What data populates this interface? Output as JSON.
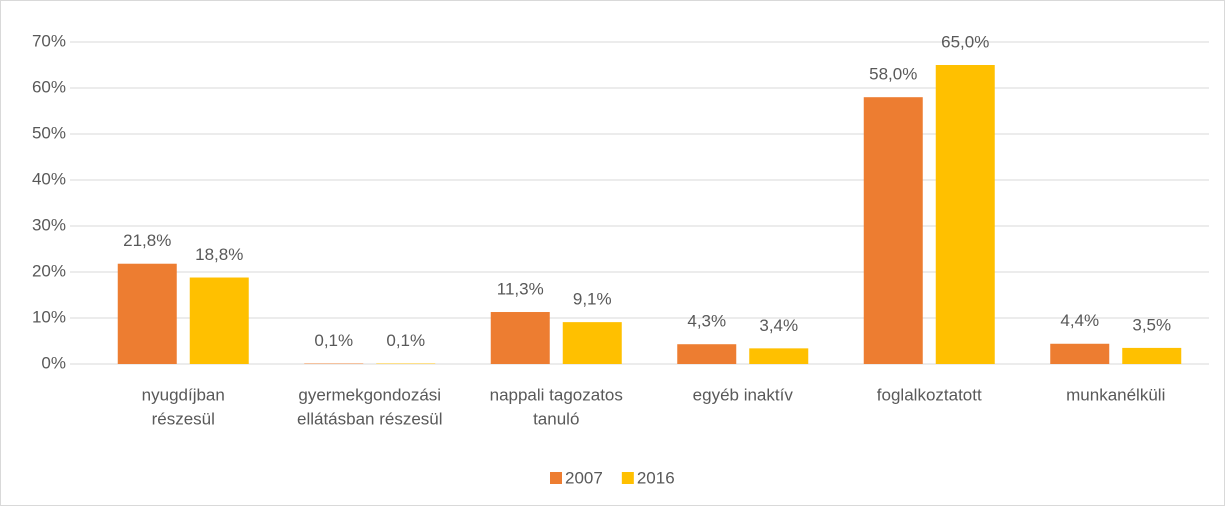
{
  "chart_data": {
    "type": "bar",
    "categories": [
      [
        "nyugdíjban",
        "részesül"
      ],
      [
        "gyermekgondozási",
        "ellátásban részesül"
      ],
      [
        "nappali tagozatos",
        "tanuló"
      ],
      [
        "egyéb inaktív"
      ],
      [
        "foglalkoztatott"
      ],
      [
        "munkanélküli"
      ]
    ],
    "series": [
      {
        "name": "2007",
        "color": "#ed7d31",
        "values": [
          21.8,
          0.1,
          11.3,
          4.3,
          58.0,
          4.4
        ],
        "value_labels": [
          "21,8%",
          "0,1%",
          "11,3%",
          "4,3%",
          "58,0%",
          "4,4%"
        ]
      },
      {
        "name": "2016",
        "color": "#ffc000",
        "values": [
          18.8,
          0.1,
          9.1,
          3.4,
          65.0,
          3.5
        ],
        "value_labels": [
          "18,8%",
          "0,1%",
          "9,1%",
          "3,4%",
          "65,0%",
          "3,5%"
        ]
      }
    ],
    "ylim": [
      0,
      70
    ],
    "yticks": [
      {
        "value": 0,
        "label": "0%"
      },
      {
        "value": 10,
        "label": "10%"
      },
      {
        "value": 20,
        "label": "20%"
      },
      {
        "value": 30,
        "label": "30%"
      },
      {
        "value": 40,
        "label": "40%"
      },
      {
        "value": 50,
        "label": "50%"
      },
      {
        "value": 60,
        "label": "60%"
      },
      {
        "value": 70,
        "label": "70%"
      }
    ],
    "grid": true,
    "legend": "bottom"
  }
}
